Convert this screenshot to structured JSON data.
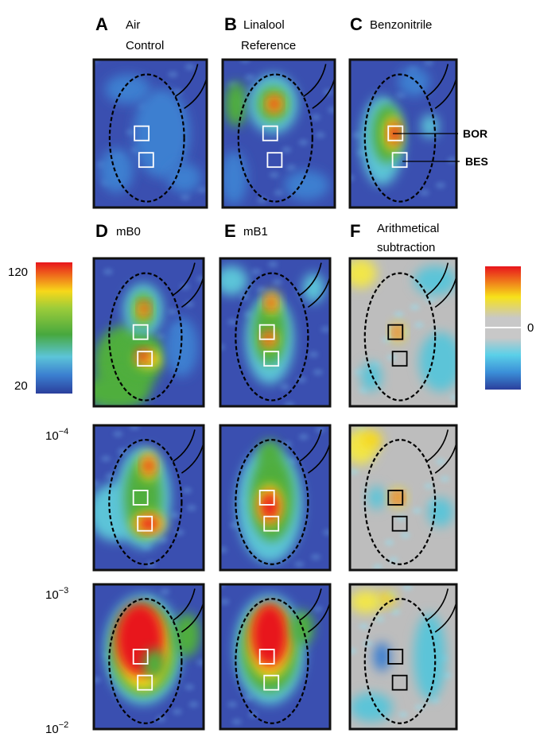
{
  "panels": [
    {
      "letter": "A",
      "caption": [
        "Air",
        "Control"
      ]
    },
    {
      "letter": "B",
      "caption": [
        "Linalool",
        "Reference"
      ]
    },
    {
      "letter": "C",
      "caption": [
        "Benzonitrile"
      ]
    },
    {
      "letter": "D",
      "caption": [
        "mB0"
      ]
    },
    {
      "letter": "E",
      "caption": [
        "mB1"
      ]
    },
    {
      "letter": "F",
      "caption": [
        "Arithmetical",
        "subtraction"
      ]
    }
  ],
  "annotations": {
    "bor": "BOR",
    "bes": "BES"
  },
  "colorbar_left": {
    "max": 120,
    "min": 20
  },
  "colorbar_right": {
    "zero": 0
  },
  "concentrations": [
    {
      "base": "10",
      "exponent": "−4"
    },
    {
      "base": "10",
      "exponent": "−3"
    },
    {
      "base": "10",
      "exponent": "−2"
    }
  ]
}
